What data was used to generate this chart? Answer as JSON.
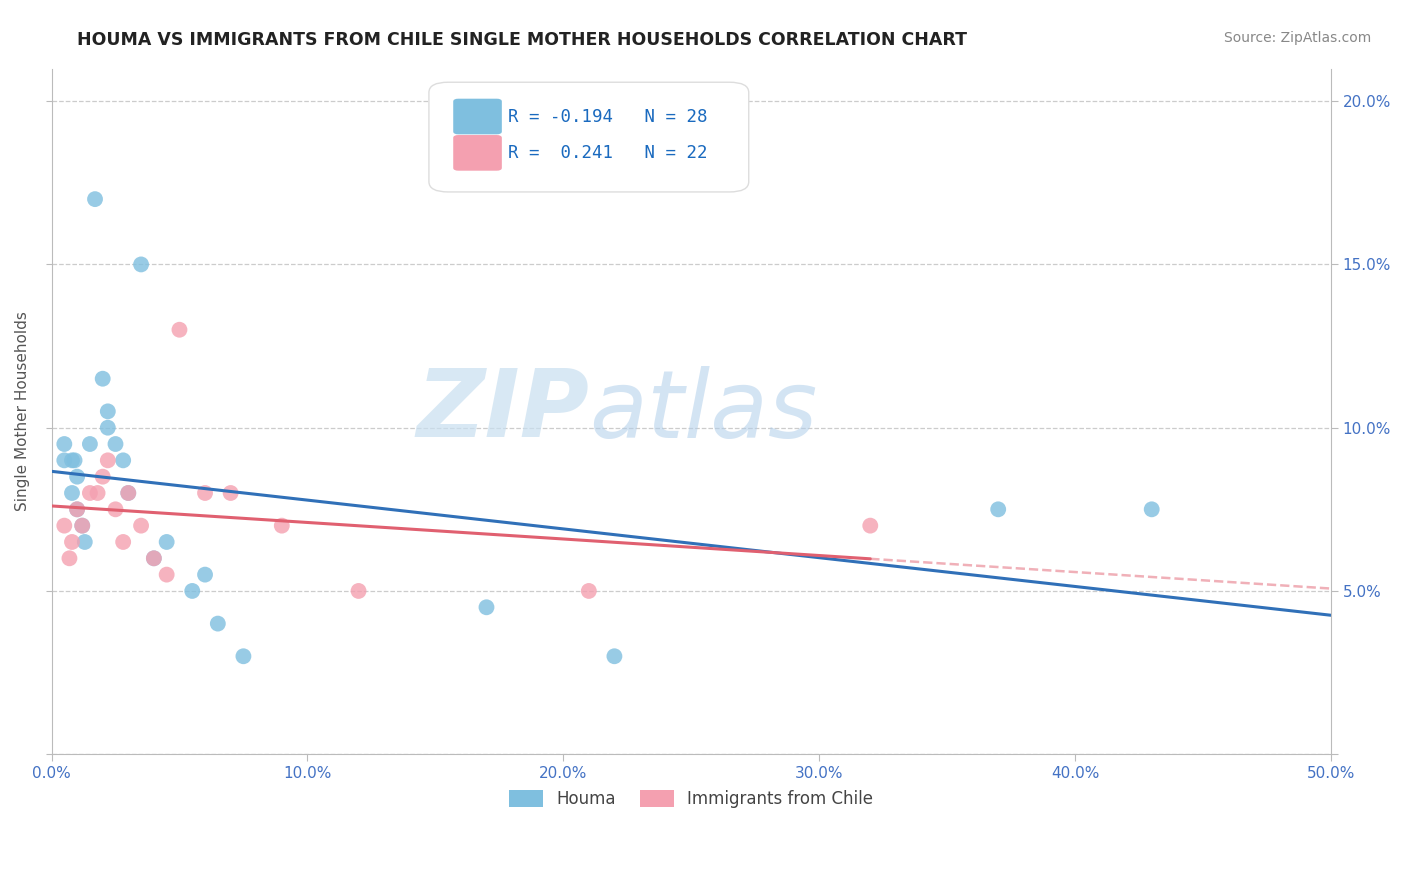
{
  "title": "HOUMA VS IMMIGRANTS FROM CHILE SINGLE MOTHER HOUSEHOLDS CORRELATION CHART",
  "source": "Source: ZipAtlas.com",
  "ylabel": "Single Mother Households",
  "xlim": [
    0.0,
    0.5
  ],
  "ylim": [
    0.0,
    0.21
  ],
  "ytick_vals": [
    0.0,
    0.05,
    0.1,
    0.15,
    0.2
  ],
  "ytick_labels": [
    "",
    "5.0%",
    "10.0%",
    "15.0%",
    "20.0%"
  ],
  "xtick_vals": [
    0.0,
    0.1,
    0.2,
    0.3,
    0.4,
    0.5
  ],
  "xtick_labels": [
    "0.0%",
    "10.0%",
    "20.0%",
    "30.0%",
    "40.0%",
    "50.0%"
  ],
  "houma_x": [
    0.005,
    0.005,
    0.008,
    0.008,
    0.009,
    0.01,
    0.01,
    0.012,
    0.013,
    0.015,
    0.017,
    0.02,
    0.022,
    0.022,
    0.025,
    0.028,
    0.03,
    0.035,
    0.04,
    0.045,
    0.055,
    0.06,
    0.065,
    0.075,
    0.17,
    0.22,
    0.37,
    0.43
  ],
  "houma_y": [
    0.09,
    0.095,
    0.08,
    0.09,
    0.09,
    0.085,
    0.075,
    0.07,
    0.065,
    0.095,
    0.17,
    0.115,
    0.105,
    0.1,
    0.095,
    0.09,
    0.08,
    0.15,
    0.06,
    0.065,
    0.05,
    0.055,
    0.04,
    0.03,
    0.045,
    0.03,
    0.075,
    0.075
  ],
  "chile_x": [
    0.005,
    0.007,
    0.008,
    0.01,
    0.012,
    0.015,
    0.018,
    0.02,
    0.022,
    0.025,
    0.028,
    0.03,
    0.035,
    0.04,
    0.045,
    0.05,
    0.06,
    0.07,
    0.09,
    0.12,
    0.21,
    0.32
  ],
  "chile_y": [
    0.07,
    0.06,
    0.065,
    0.075,
    0.07,
    0.08,
    0.08,
    0.085,
    0.09,
    0.075,
    0.065,
    0.08,
    0.07,
    0.06,
    0.055,
    0.13,
    0.08,
    0.08,
    0.07,
    0.05,
    0.05,
    0.07
  ],
  "houma_R": -0.194,
  "houma_N": 28,
  "chile_R": 0.241,
  "chile_N": 22,
  "houma_color": "#7fbfdf",
  "chile_color": "#f4a0b0",
  "houma_line_color": "#3070b8",
  "chile_line_color": "#e06070",
  "chile_dashed_color": "#f0b0b8",
  "watermark_color": "#d8eaf5",
  "background_color": "#ffffff",
  "grid_color": "#cccccc",
  "title_color": "#222222",
  "legend_R_color": "#1a6abf",
  "right_axis_color": "#4472c4",
  "legend_box_color": "#dddddd"
}
